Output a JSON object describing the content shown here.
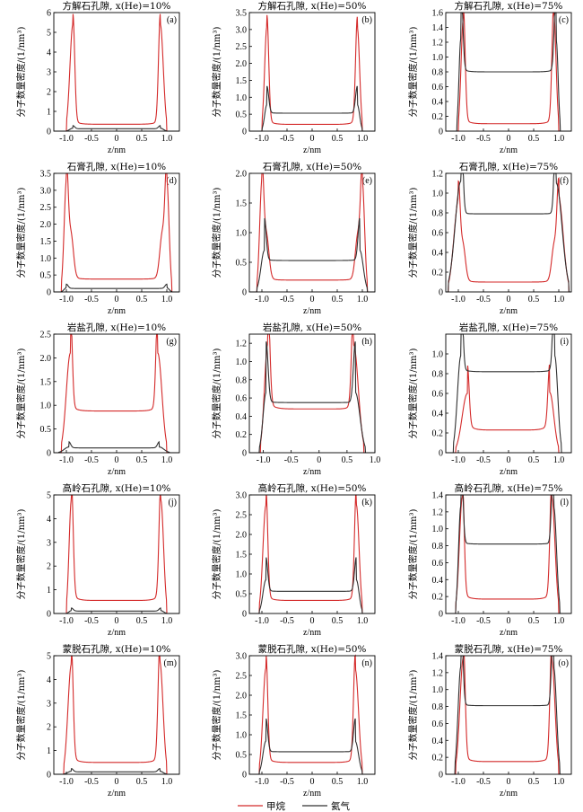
{
  "figure": {
    "y_label": "分子数量密度/(1/nm³)",
    "x_label": "z/nm",
    "legend": [
      {
        "label": "甲烷",
        "color": "#d42a2a"
      },
      {
        "label": "氦气",
        "color": "#303030"
      }
    ]
  },
  "chart_data": [
    {
      "id": "a",
      "type": "line",
      "title": "方解石孔隙, x(He)=10%",
      "panel_label": "(a)",
      "xlim": [
        -1.25,
        1.25
      ],
      "xticks": [
        -1.0,
        -0.5,
        0,
        0.5,
        1.0
      ],
      "ylim": [
        0,
        6
      ],
      "yticks": [
        0,
        1,
        2,
        3,
        4,
        5,
        6
      ],
      "series": [
        {
          "name": "甲烷",
          "color": "#d42a2a",
          "wall": [
            -1.0,
            1.0
          ],
          "peak_pos": [
            -0.87,
            0.87
          ],
          "peak": [
            5.4,
            5.4
          ],
          "center": 0.35,
          "edge": 0.55
        },
        {
          "name": "氦气",
          "color": "#303030",
          "wall": [
            -1.0,
            1.0
          ],
          "peak_pos": [
            -0.87,
            0.87
          ],
          "peak": [
            0.15,
            0.15
          ],
          "center": 0.12,
          "edge": 0.13
        }
      ]
    },
    {
      "id": "b",
      "type": "line",
      "title": "方解石孔隙, x(He)=50%",
      "panel_label": "(b)",
      "xlim": [
        -1.25,
        1.25
      ],
      "xticks": [
        -1.0,
        -0.5,
        0,
        0.5,
        1.0
      ],
      "ylim": [
        0,
        3.5
      ],
      "yticks": [
        0,
        0.5,
        1.0,
        1.5,
        2.0,
        2.5,
        3.0,
        3.5
      ],
      "series": [
        {
          "name": "甲烷",
          "color": "#d42a2a",
          "wall": [
            -1.0,
            1.0
          ],
          "peak_pos": [
            -0.9,
            0.9
          ],
          "peak": [
            3.1,
            3.05
          ],
          "center": 0.2,
          "edge": 0.33
        },
        {
          "name": "氦气",
          "color": "#303030",
          "wall": [
            -1.0,
            1.0
          ],
          "peak_pos": [
            -0.9,
            0.9
          ],
          "peak": [
            0.78,
            0.78
          ],
          "center": 0.53,
          "edge": 0.55
        }
      ]
    },
    {
      "id": "c",
      "type": "line",
      "title": "方解石孔隙, x(He)=75%",
      "panel_label": "(c)",
      "xlim": [
        -1.25,
        1.25
      ],
      "xticks": [
        -1.0,
        -0.5,
        0,
        0.5,
        1.0
      ],
      "ylim": [
        0,
        1.6
      ],
      "yticks": [
        0,
        0.2,
        0.4,
        0.6,
        0.8,
        1.0,
        1.2,
        1.4,
        1.6
      ],
      "series": [
        {
          "name": "甲烷",
          "color": "#d42a2a",
          "wall": [
            -1.0,
            1.0
          ],
          "peak_pos": [
            -0.9,
            0.9
          ],
          "peak": [
            1.52,
            1.58
          ],
          "center": 0.1,
          "edge": 0.17
        },
        {
          "name": "氦气",
          "color": "#303030",
          "wall": [
            -1.03,
            1.03
          ],
          "peak_pos": [
            -0.95,
            0.95
          ],
          "peak": [
            1.25,
            1.22
          ],
          "center": 0.8,
          "edge": 0.84
        }
      ]
    },
    {
      "id": "d",
      "type": "line",
      "title": "石膏孔隙, x(He)=10%",
      "panel_label": "(d)",
      "xlim": [
        -1.25,
        1.25
      ],
      "xticks": [
        -1.0,
        -0.5,
        0,
        0.5,
        1.0
      ],
      "ylim": [
        0,
        3.5
      ],
      "yticks": [
        0,
        0.5,
        1.0,
        1.5,
        2.0,
        2.5,
        3.0,
        3.5
      ],
      "series": [
        {
          "name": "甲烷",
          "color": "#d42a2a",
          "wall": [
            -1.1,
            1.1
          ],
          "peak_pos": [
            -1.0,
            1.0
          ],
          "peak": [
            3.1,
            3.1
          ],
          "center": 0.38,
          "edge": 0.55,
          "shoulder": 2.3
        },
        {
          "name": "氦气",
          "color": "#303030",
          "wall": [
            -1.1,
            1.1
          ],
          "peak_pos": [
            -1.0,
            1.0
          ],
          "peak": [
            0.12,
            0.12
          ],
          "center": 0.1,
          "edge": 0.11
        }
      ]
    },
    {
      "id": "e",
      "type": "line",
      "title": "石膏孔隙, x(He)=50%",
      "panel_label": "(e)",
      "xlim": [
        -1.25,
        1.25
      ],
      "xticks": [
        -1.0,
        -0.5,
        0,
        0.5,
        1.0
      ],
      "ylim": [
        0,
        2.0
      ],
      "yticks": [
        0,
        0.5,
        1.0,
        1.5,
        2.0
      ],
      "series": [
        {
          "name": "甲烷",
          "color": "#d42a2a",
          "wall": [
            -1.1,
            1.1
          ],
          "peak_pos": [
            -1.0,
            1.0
          ],
          "peak": [
            1.78,
            1.75
          ],
          "center": 0.2,
          "edge": 0.3,
          "shoulder": 1.3
        },
        {
          "name": "氦气",
          "color": "#303030",
          "wall": [
            -1.1,
            1.1
          ],
          "peak_pos": [
            -0.95,
            0.95
          ],
          "peak": [
            0.7,
            0.7
          ],
          "center": 0.53,
          "edge": 0.55
        }
      ]
    },
    {
      "id": "f",
      "type": "line",
      "title": "石膏孔隙, x(He)=75%",
      "panel_label": "(f)",
      "xlim": [
        -1.25,
        1.25
      ],
      "xticks": [
        -1.0,
        -0.5,
        0,
        0.5,
        1.0
      ],
      "ylim": [
        0,
        1.2
      ],
      "yticks": [
        0,
        0.2,
        0.4,
        0.6,
        0.8,
        1.0,
        1.2
      ],
      "series": [
        {
          "name": "甲烷",
          "color": "#d42a2a",
          "wall": [
            -1.2,
            1.2
          ],
          "peak_pos": [
            -1.0,
            1.0
          ],
          "peak": [
            0.89,
            0.92
          ],
          "center": 0.1,
          "edge": 0.16,
          "shoulder": 0.65
        },
        {
          "name": "氦气",
          "color": "#303030",
          "wall": [
            -1.2,
            1.2
          ],
          "peak_pos": [
            -0.95,
            0.95
          ],
          "peak": [
            1.12,
            1.1
          ],
          "center": 0.79,
          "edge": 0.8
        }
      ]
    },
    {
      "id": "g",
      "type": "line",
      "title": "岩盐孔隙, x(He)=10%",
      "panel_label": "(g)",
      "xlim": [
        -1.25,
        1.25
      ],
      "xticks": [
        -1.0,
        -0.5,
        0,
        0.5,
        1.0
      ],
      "ylim": [
        0,
        2.5
      ],
      "yticks": [
        0,
        0.5,
        1.0,
        1.5,
        2.0,
        2.5
      ],
      "series": [
        {
          "name": "甲烷",
          "color": "#d42a2a",
          "wall": [
            -1.1,
            1.0
          ],
          "peak_pos": [
            -0.92,
            0.82
          ],
          "peak": [
            2.1,
            2.1
          ],
          "center": 0.88,
          "edge": 1.0
        },
        {
          "name": "氦气",
          "color": "#303030",
          "wall": [
            -1.15,
            1.05
          ],
          "peak_pos": [
            -0.95,
            0.85
          ],
          "peak": [
            0.12,
            0.12
          ],
          "center": 0.1,
          "edge": 0.11
        }
      ]
    },
    {
      "id": "h",
      "type": "line",
      "title": "岩盐孔隙, x(He)=50%",
      "panel_label": "(h)",
      "xlim": [
        -1.25,
        1.0
      ],
      "xticks": [
        -1.0,
        -0.5,
        0,
        0.5,
        1.0
      ],
      "ylim": [
        0,
        1.3
      ],
      "yticks": [
        0,
        0.2,
        0.4,
        0.6,
        0.8,
        1.0,
        1.2
      ],
      "series": [
        {
          "name": "甲烷",
          "color": "#d42a2a",
          "wall": [
            -1.05,
            0.8
          ],
          "peak_pos": [
            -0.92,
            0.62
          ],
          "peak": [
            1.19,
            1.18
          ],
          "center": 0.48,
          "edge": 0.55
        },
        {
          "name": "氦气",
          "color": "#303030",
          "wall": [
            -1.07,
            0.83
          ],
          "peak_pos": [
            -0.95,
            0.65
          ],
          "peak": [
            0.66,
            0.66
          ],
          "center": 0.55,
          "edge": 0.56
        }
      ]
    },
    {
      "id": "i",
      "type": "line",
      "title": "岩盐孔隙, x(He)=75%",
      "panel_label": "(i)",
      "xlim": [
        -1.25,
        1.25
      ],
      "xticks": [
        -1.0,
        -0.5,
        0,
        0.5,
        1.0
      ],
      "ylim": [
        0,
        1.2
      ],
      "yticks": [
        0,
        0.2,
        0.4,
        0.6,
        0.8,
        1.0
      ],
      "series": [
        {
          "name": "甲烷",
          "color": "#d42a2a",
          "wall": [
            -1.05,
            1.0
          ],
          "peak_pos": [
            -0.82,
            0.82
          ],
          "peak": [
            0.6,
            0.61
          ],
          "center": 0.23,
          "edge": 0.3
        },
        {
          "name": "氦气",
          "color": "#303030",
          "wall": [
            -1.1,
            1.05
          ],
          "peak_pos": [
            -0.95,
            0.92
          ],
          "peak": [
            0.98,
            0.98
          ],
          "center": 0.82,
          "edge": 0.85
        }
      ]
    },
    {
      "id": "j",
      "type": "line",
      "title": "高岭石孔隙, x(He)=10%",
      "panel_label": "(j)",
      "xlim": [
        -1.25,
        1.25
      ],
      "xticks": [
        -1.0,
        -0.5,
        0,
        0.5,
        1.0
      ],
      "ylim": [
        0,
        5
      ],
      "yticks": [
        0,
        1,
        2,
        3,
        4,
        5
      ],
      "series": [
        {
          "name": "甲烷",
          "color": "#d42a2a",
          "wall": [
            -1.0,
            1.0
          ],
          "peak_pos": [
            -0.9,
            0.88
          ],
          "peak": [
            4.8,
            4.78
          ],
          "center": 0.55,
          "edge": 0.8
        },
        {
          "name": "氦气",
          "color": "#303030",
          "wall": [
            -1.0,
            1.0
          ],
          "peak_pos": [
            -0.9,
            0.88
          ],
          "peak": [
            0.12,
            0.12
          ],
          "center": 0.1,
          "edge": 0.11
        }
      ]
    },
    {
      "id": "k",
      "type": "line",
      "title": "高岭石孔隙, x(He)=50%",
      "panel_label": "(k)",
      "xlim": [
        -1.25,
        1.25
      ],
      "xticks": [
        -1.0,
        -0.5,
        0,
        0.5,
        1.0
      ],
      "ylim": [
        0,
        3.0
      ],
      "yticks": [
        0,
        0.5,
        1.0,
        1.5,
        2.0,
        2.5,
        3.0
      ],
      "series": [
        {
          "name": "甲烷",
          "color": "#d42a2a",
          "wall": [
            -1.05,
            1.0
          ],
          "peak_pos": [
            -0.92,
            0.88
          ],
          "peak": [
            2.73,
            2.75
          ],
          "center": 0.33,
          "edge": 0.45
        },
        {
          "name": "氦气",
          "color": "#303030",
          "wall": [
            -1.05,
            1.0
          ],
          "peak_pos": [
            -0.92,
            0.88
          ],
          "peak": [
            0.85,
            0.85
          ],
          "center": 0.56,
          "edge": 0.58
        }
      ]
    },
    {
      "id": "l",
      "type": "line",
      "title": "高岭石孔隙, x(He)=75%",
      "panel_label": "(l)",
      "xlim": [
        -1.25,
        1.25
      ],
      "xticks": [
        -1.0,
        -0.5,
        0,
        0.5,
        1.0
      ],
      "ylim": [
        0,
        1.4
      ],
      "yticks": [
        0,
        0.2,
        0.4,
        0.6,
        0.8,
        1.0,
        1.2,
        1.4
      ],
      "series": [
        {
          "name": "甲烷",
          "color": "#d42a2a",
          "wall": [
            -1.05,
            1.0
          ],
          "peak_pos": [
            -0.92,
            0.86
          ],
          "peak": [
            1.37,
            1.37
          ],
          "center": 0.17,
          "edge": 0.24
        },
        {
          "name": "氦气",
          "color": "#303030",
          "wall": [
            -1.05,
            1.02
          ],
          "peak_pos": [
            -0.95,
            0.9
          ],
          "peak": [
            1.27,
            1.26
          ],
          "center": 0.82,
          "edge": 0.84
        }
      ]
    },
    {
      "id": "m",
      "type": "line",
      "title": "蒙脱石孔隙, x(He)=10%",
      "panel_label": "(m)",
      "xlim": [
        -1.25,
        1.25
      ],
      "xticks": [
        -1.0,
        -0.5,
        0,
        0.5,
        1.0
      ],
      "ylim": [
        0,
        5
      ],
      "yticks": [
        0,
        1,
        2,
        3,
        4,
        5
      ],
      "series": [
        {
          "name": "甲烷",
          "color": "#d42a2a",
          "wall": [
            -1.05,
            1.0
          ],
          "peak_pos": [
            -0.9,
            0.86
          ],
          "peak": [
            4.65,
            4.75
          ],
          "center": 0.5,
          "edge": 0.75
        },
        {
          "name": "氦气",
          "color": "#303030",
          "wall": [
            -1.05,
            1.0
          ],
          "peak_pos": [
            -0.9,
            0.86
          ],
          "peak": [
            0.13,
            0.13
          ],
          "center": 0.1,
          "edge": 0.11
        }
      ]
    },
    {
      "id": "n",
      "type": "line",
      "title": "蒙脱石孔隙, x(He)=50%",
      "panel_label": "(n)",
      "xlim": [
        -1.25,
        1.25
      ],
      "xticks": [
        -1.0,
        -0.5,
        0,
        0.5,
        1.0
      ],
      "ylim": [
        0,
        3.0
      ],
      "yticks": [
        0,
        0.5,
        1.0,
        1.5,
        2.0,
        2.5,
        3.0
      ],
      "series": [
        {
          "name": "甲烷",
          "color": "#d42a2a",
          "wall": [
            -1.05,
            1.0
          ],
          "peak_pos": [
            -0.92,
            0.86
          ],
          "peak": [
            2.68,
            2.65
          ],
          "center": 0.3,
          "edge": 0.42
        },
        {
          "name": "氦气",
          "color": "#303030",
          "wall": [
            -1.05,
            1.0
          ],
          "peak_pos": [
            -0.92,
            0.86
          ],
          "peak": [
            0.84,
            0.83
          ],
          "center": 0.57,
          "edge": 0.58
        }
      ]
    },
    {
      "id": "o",
      "type": "line",
      "title": "蒙脱石孔隙, x(He)=75%",
      "panel_label": "(o)",
      "xlim": [
        -1.25,
        1.25
      ],
      "xticks": [
        -1.0,
        -0.5,
        0,
        0.5,
        1.0
      ],
      "ylim": [
        0,
        1.4
      ],
      "yticks": [
        0,
        0.2,
        0.4,
        0.6,
        0.8,
        1.0,
        1.2,
        1.4
      ],
      "series": [
        {
          "name": "甲烷",
          "color": "#d42a2a",
          "wall": [
            -1.05,
            1.0
          ],
          "peak_pos": [
            -0.9,
            0.86
          ],
          "peak": [
            1.38,
            1.35
          ],
          "center": 0.15,
          "edge": 0.22
        },
        {
          "name": "氦气",
          "color": "#303030",
          "wall": [
            -1.07,
            1.02
          ],
          "peak_pos": [
            -0.95,
            0.9
          ],
          "peak": [
            1.27,
            1.26
          ],
          "center": 0.81,
          "edge": 0.83
        }
      ]
    }
  ]
}
